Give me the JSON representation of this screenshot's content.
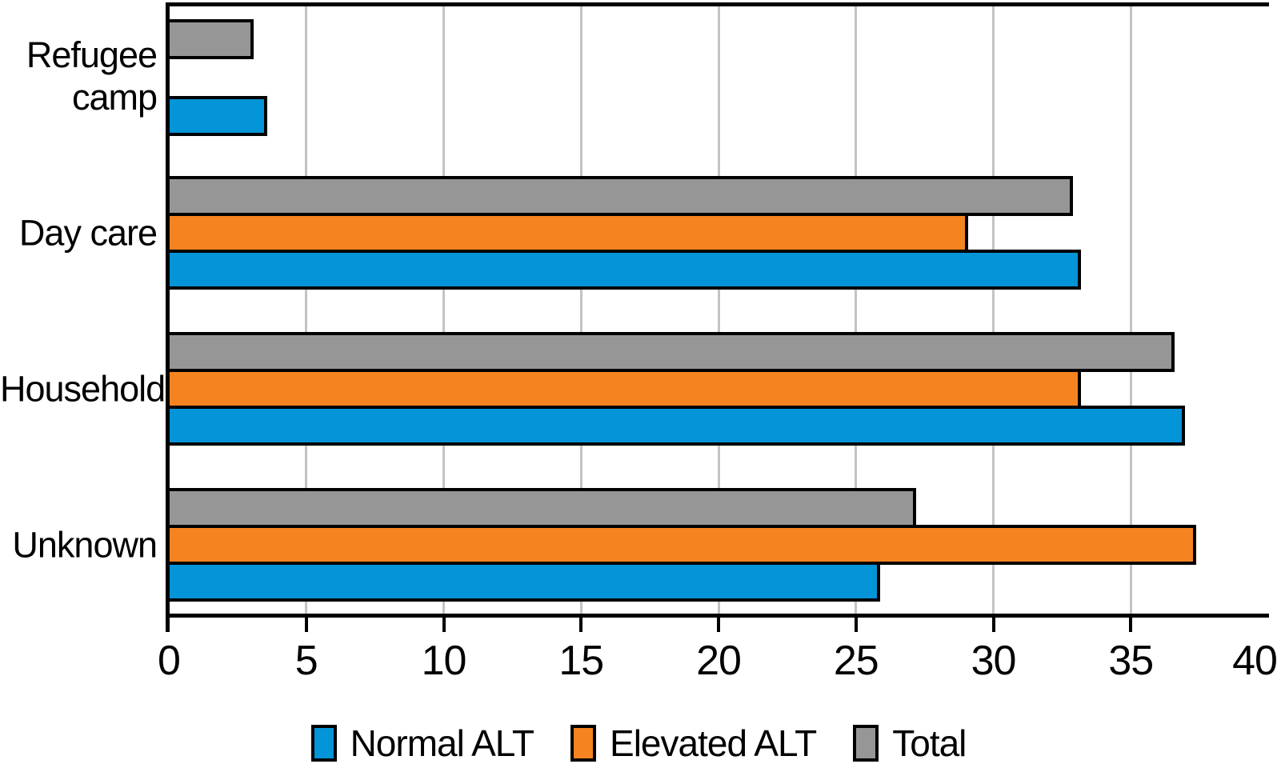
{
  "chart_data": {
    "type": "bar",
    "orientation": "horizontal",
    "categories": [
      "Refugee camp",
      "Day care",
      "Household",
      "Unknown"
    ],
    "series": [
      {
        "name": "Normal ALT",
        "color": "#0494d8",
        "values": [
          3.7,
          33.3,
          37.1,
          26.0
        ]
      },
      {
        "name": "Elevated ALT",
        "color": "#f58420",
        "values": [
          0,
          29.2,
          33.3,
          37.5
        ]
      },
      {
        "name": "Total",
        "color": "#969696",
        "values": [
          3.2,
          33.0,
          36.7,
          27.3
        ]
      }
    ],
    "bar_order_top_to_bottom": [
      "Total",
      "Elevated ALT",
      "Normal ALT"
    ],
    "xlim": [
      0,
      40
    ],
    "x_ticks": [
      0,
      5,
      10,
      15,
      20,
      25,
      30,
      35,
      40
    ],
    "gridlines": "vertical light-gray lines at ticks 5 through 35",
    "legend_position": "bottom-center",
    "legend_order": [
      "Normal ALT",
      "Elevated ALT",
      "Total"
    ]
  },
  "colors": {
    "background": "#ffffff",
    "bar_border": "#000000",
    "axis": "#000000",
    "gridline": "#c3c3c3",
    "text": "#000000"
  }
}
